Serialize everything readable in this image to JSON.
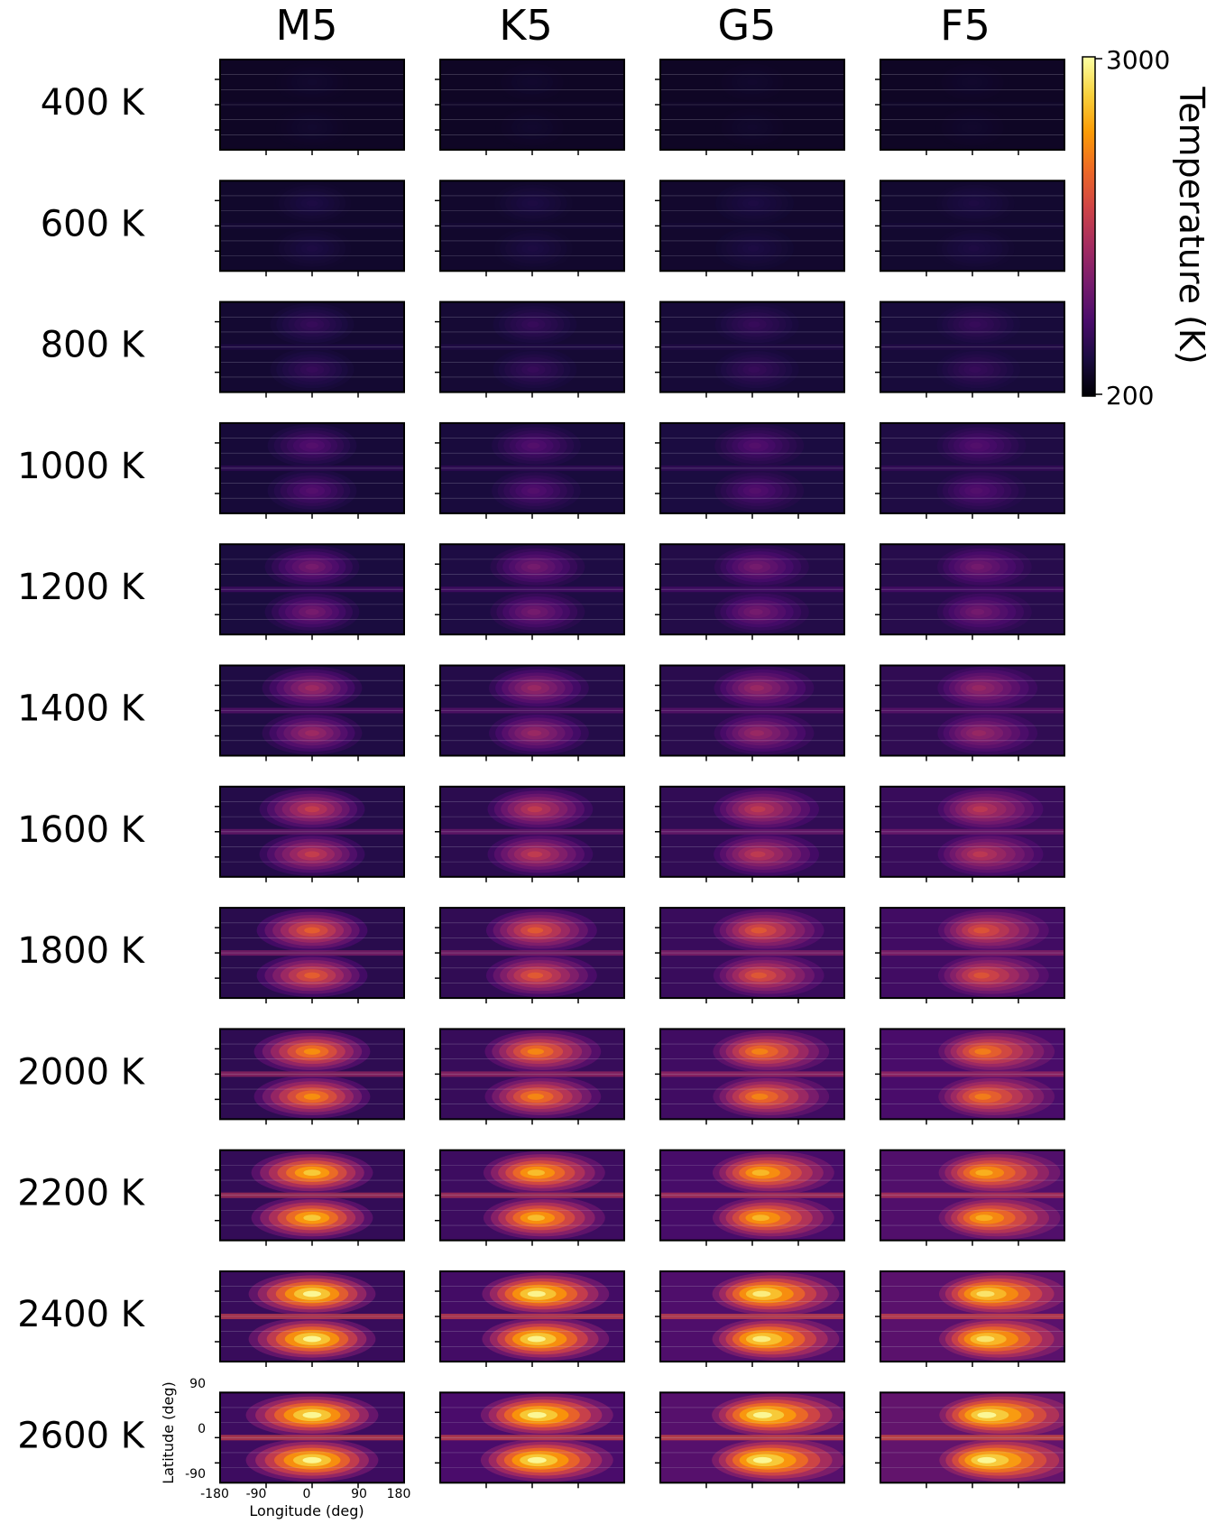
{
  "chart_data": {
    "type": "heatmap",
    "title": "",
    "description_grid": "Temperature maps (longitude vs latitude) for host star types and equilibrium temperatures",
    "columns": [
      "M5",
      "K5",
      "G5",
      "F5"
    ],
    "rows": [
      "400 K",
      "600 K",
      "800 K",
      "1000 K",
      "1200 K",
      "1400 K",
      "1600 K",
      "1800 K",
      "2000 K",
      "2200 K",
      "2400 K",
      "2600 K"
    ],
    "teq_values": [
      400,
      600,
      800,
      1000,
      1200,
      1400,
      1600,
      1800,
      2000,
      2200,
      2400,
      2600
    ],
    "xlabel": "Longitude (deg)",
    "ylabel": "Latitude (deg)",
    "xticks": [
      "-180",
      "-90",
      "0",
      "90",
      "180"
    ],
    "yticks": [
      "90",
      "0",
      "-90"
    ],
    "xlim": [
      -180,
      180
    ],
    "ylim": [
      -90,
      90
    ],
    "colorbar": {
      "label": "Temperature (K)",
      "min_label": "200",
      "max_label": "3000",
      "min": 200,
      "max": 3000,
      "colormap": [
        "#000004",
        "#1b0c41",
        "#4a0c6b",
        "#781c6d",
        "#a52c60",
        "#cf4446",
        "#ed6925",
        "#fb9b06",
        "#f7d13d",
        "#fcffa4"
      ]
    }
  }
}
